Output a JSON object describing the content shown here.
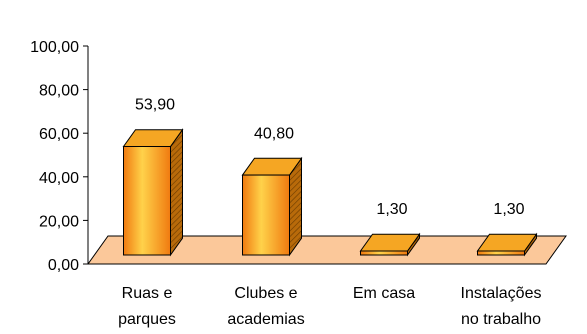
{
  "chart_data": {
    "type": "bar",
    "style": "3d-column",
    "title": "",
    "xlabel": "",
    "ylabel": "",
    "ylim": [
      0,
      100
    ],
    "yticks": [
      "0,00",
      "20,00",
      "40,00",
      "60,00",
      "80,00",
      "100,00"
    ],
    "categories": [
      [
        "Ruas e",
        "parques"
      ],
      [
        "Clubes e",
        "academias"
      ],
      [
        "Em casa"
      ],
      [
        "Instalações",
        "no trabalho"
      ]
    ],
    "values": [
      53.9,
      40.8,
      1.3,
      1.3
    ],
    "value_labels": [
      "53,90",
      "40,80",
      "1,30",
      "1,30"
    ],
    "grid": false,
    "legend": false,
    "colors": {
      "bar_front_light": "#FFD24A",
      "bar_front_dark": "#F07A10",
      "bar_top": "#F5A623",
      "bar_side": "#B86A0A",
      "floor": "#FBC89A",
      "axis": "#000000"
    }
  }
}
